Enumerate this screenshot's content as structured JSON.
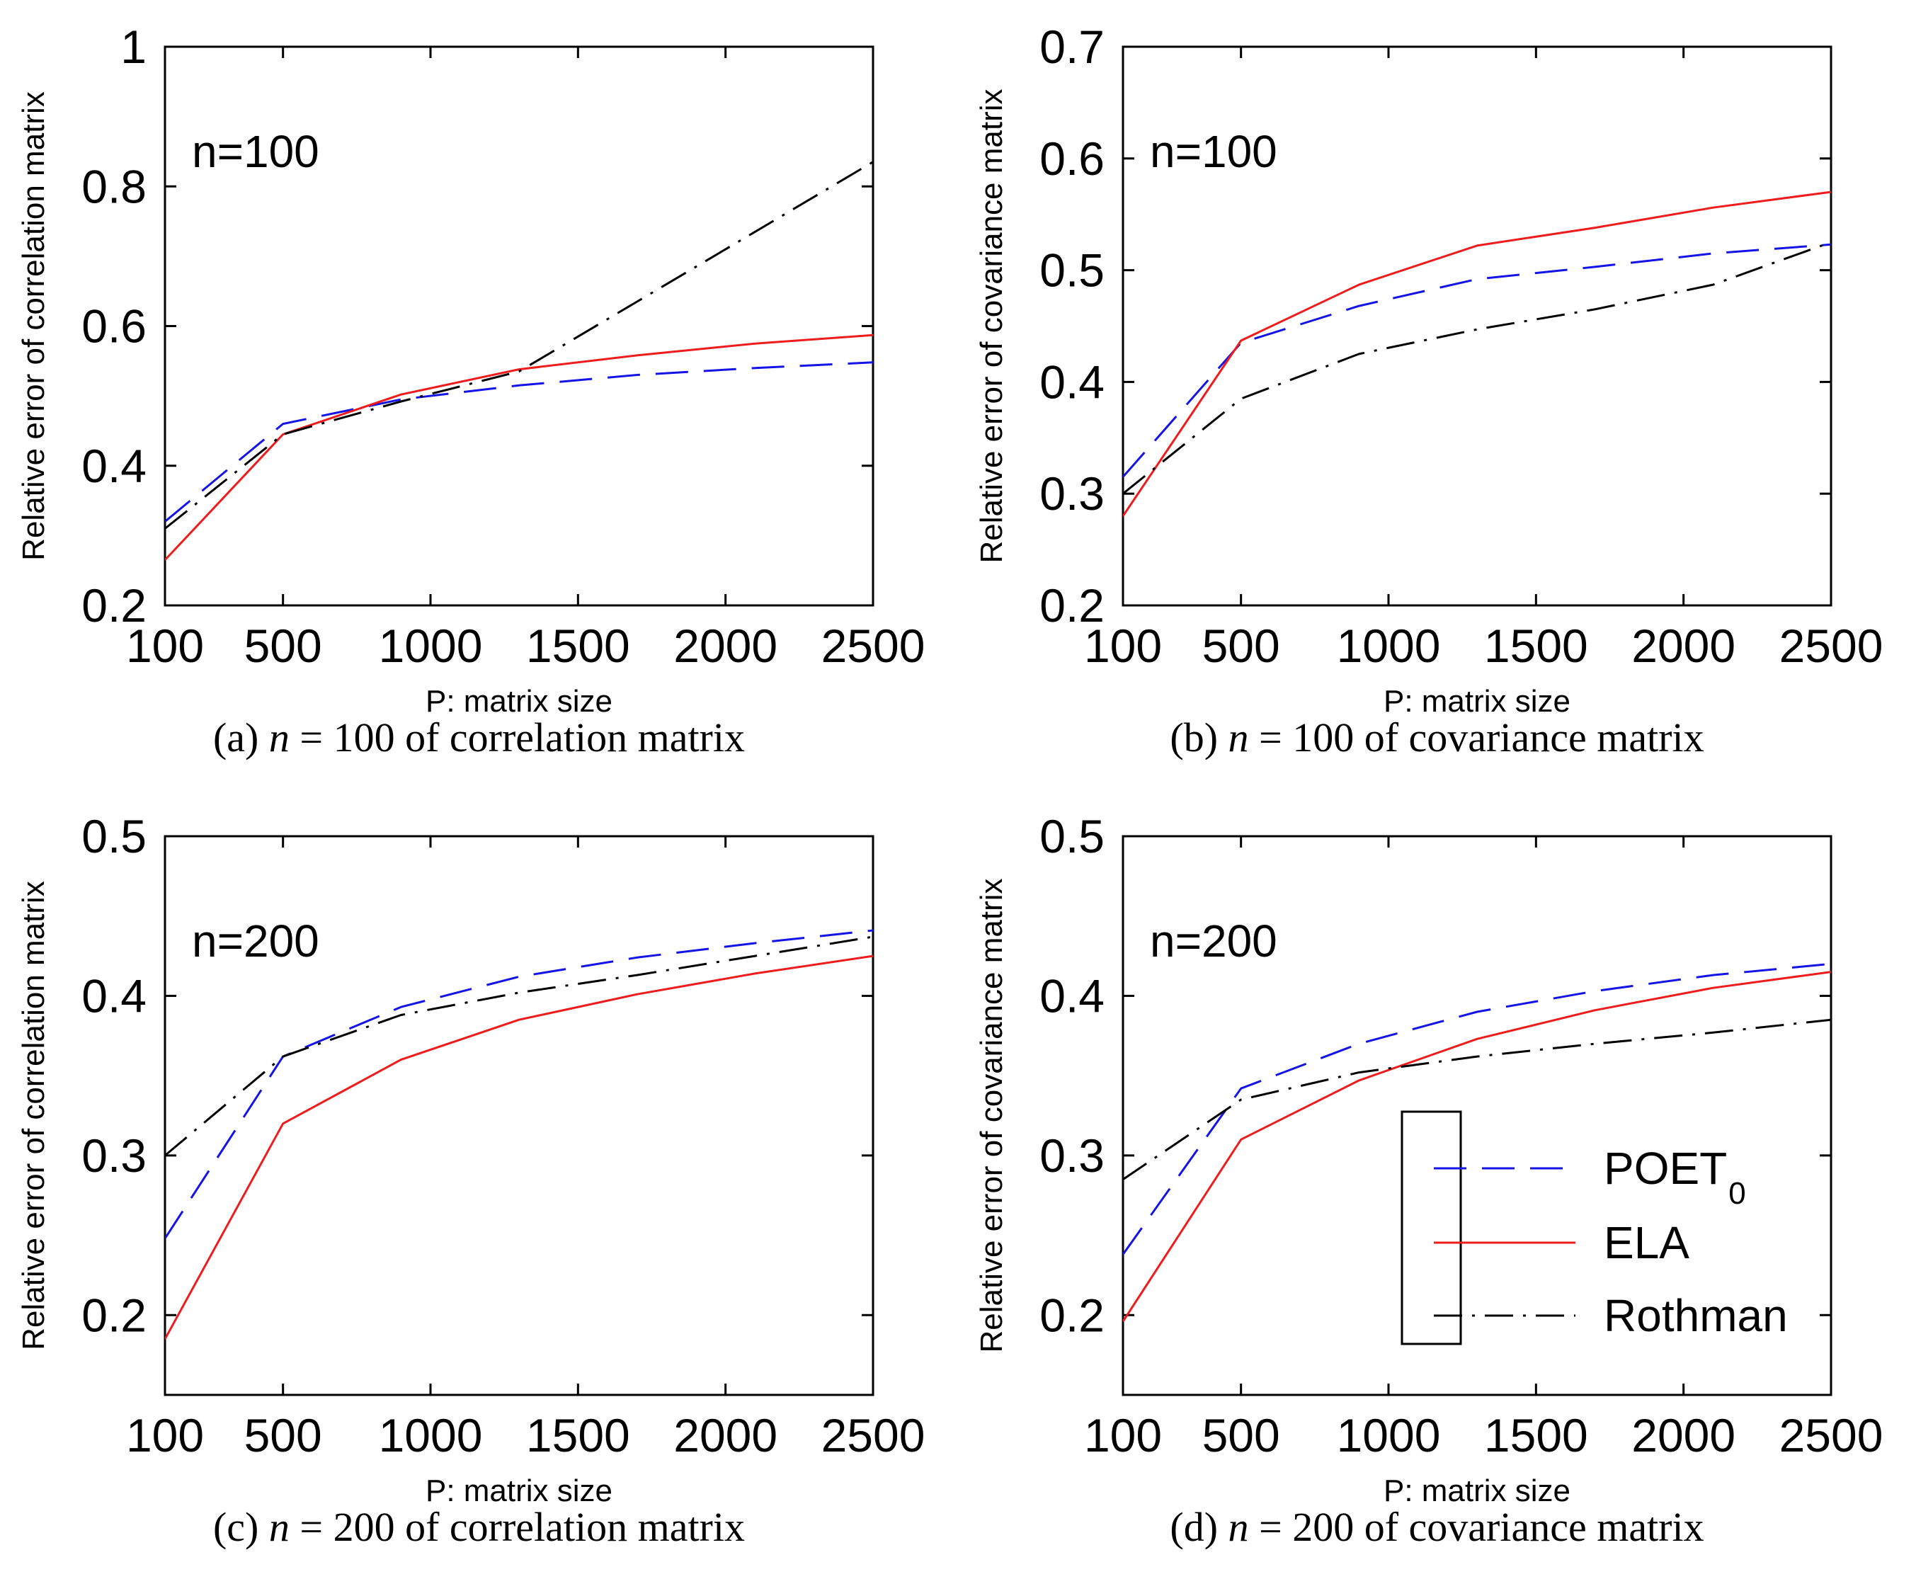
{
  "chart_data": [
    {
      "type": "line",
      "panel": "a",
      "annotation": "n=100",
      "xlabel": "P: matrix size",
      "ylabel": "Relative error of correlation matrix",
      "xticks": [
        100,
        500,
        1000,
        1500,
        2000,
        2500
      ],
      "yticks": [
        0.2,
        0.4,
        0.6,
        0.8,
        1
      ],
      "ytick_labels": [
        "0.2",
        "0.4",
        "0.6",
        "0.8",
        "1"
      ],
      "xlim": [
        100,
        2500
      ],
      "ylim": [
        0.2,
        1.0
      ],
      "caption_prefix": "(a)",
      "caption_var": "n",
      "caption_rest": " = 100 of correlation matrix",
      "series": [
        {
          "name": "POET0",
          "x": [
            100,
            500,
            900,
            1300,
            1700,
            2100,
            2500
          ],
          "y": [
            0.32,
            0.46,
            0.495,
            0.515,
            0.53,
            0.54,
            0.548
          ]
        },
        {
          "name": "ELA",
          "x": [
            100,
            500,
            900,
            1300,
            1700,
            2100,
            2500
          ],
          "y": [
            0.265,
            0.445,
            0.502,
            0.538,
            0.558,
            0.575,
            0.587
          ]
        },
        {
          "name": "Rothman",
          "x": [
            100,
            500,
            900,
            1300,
            1700,
            2100,
            2500
          ],
          "y": [
            0.31,
            0.445,
            0.492,
            0.535,
            0.635,
            0.735,
            0.835
          ]
        }
      ]
    },
    {
      "type": "line",
      "panel": "b",
      "annotation": "n=100",
      "xlabel": "P: matrix size",
      "ylabel": "Relative error of covariance matrix",
      "xticks": [
        100,
        500,
        1000,
        1500,
        2000,
        2500
      ],
      "yticks": [
        0.2,
        0.3,
        0.4,
        0.5,
        0.6,
        0.7
      ],
      "ytick_labels": [
        "0.2",
        "0.3",
        "0.4",
        "0.5",
        "0.6",
        "0.7"
      ],
      "xlim": [
        100,
        2500
      ],
      "ylim": [
        0.2,
        0.7
      ],
      "caption_prefix": "(b)",
      "caption_var": "n",
      "caption_rest": " = 100 of covariance matrix",
      "series": [
        {
          "name": "POET0",
          "x": [
            100,
            500,
            900,
            1300,
            1700,
            2100,
            2500
          ],
          "y": [
            0.315,
            0.435,
            0.468,
            0.492,
            0.503,
            0.515,
            0.523
          ]
        },
        {
          "name": "ELA",
          "x": [
            100,
            500,
            900,
            1300,
            1700,
            2100,
            2500
          ],
          "y": [
            0.28,
            0.437,
            0.487,
            0.522,
            0.538,
            0.556,
            0.57
          ]
        },
        {
          "name": "Rothman",
          "x": [
            100,
            500,
            900,
            1300,
            1700,
            2100,
            2500
          ],
          "y": [
            0.3,
            0.385,
            0.425,
            0.447,
            0.465,
            0.487,
            0.525
          ]
        }
      ]
    },
    {
      "type": "line",
      "panel": "c",
      "annotation": "n=200",
      "xlabel": "P: matrix size",
      "ylabel": "Relative error of correlation matrix",
      "xticks": [
        100,
        500,
        1000,
        1500,
        2000,
        2500
      ],
      "yticks": [
        0.2,
        0.3,
        0.4,
        0.5
      ],
      "ytick_labels": [
        "0.2",
        "0.3",
        "0.4",
        "0.5"
      ],
      "xlim": [
        100,
        2500
      ],
      "ylim": [
        0.15,
        0.5
      ],
      "caption_prefix": "(c)",
      "caption_var": "n",
      "caption_rest": " = 200 of correlation matrix",
      "series": [
        {
          "name": "POET0",
          "x": [
            100,
            500,
            900,
            1300,
            1700,
            2100,
            2500
          ],
          "y": [
            0.248,
            0.362,
            0.393,
            0.412,
            0.424,
            0.433,
            0.441
          ]
        },
        {
          "name": "ELA",
          "x": [
            100,
            500,
            900,
            1300,
            1700,
            2100,
            2500
          ],
          "y": [
            0.185,
            0.32,
            0.36,
            0.385,
            0.401,
            0.414,
            0.425
          ]
        },
        {
          "name": "Rothman",
          "x": [
            100,
            500,
            900,
            1300,
            1700,
            2100,
            2500
          ],
          "y": [
            0.3,
            0.362,
            0.388,
            0.402,
            0.413,
            0.425,
            0.437
          ]
        }
      ]
    },
    {
      "type": "line",
      "panel": "d",
      "annotation": "n=200",
      "xlabel": "P: matrix size",
      "ylabel": "Relative error of covariance matrix",
      "xticks": [
        100,
        500,
        1000,
        1500,
        2000,
        2500
      ],
      "yticks": [
        0.2,
        0.3,
        0.4,
        0.5
      ],
      "ytick_labels": [
        "0.2",
        "0.3",
        "0.4",
        "0.5"
      ],
      "xlim": [
        100,
        2500
      ],
      "ylim": [
        0.15,
        0.5
      ],
      "caption_prefix": "(d)",
      "caption_var": "n",
      "caption_rest": " = 200 of covariance matrix",
      "legend": {
        "location": "bottom-right",
        "entries": [
          {
            "name": "POET",
            "sub": "0"
          },
          {
            "name": "ELA",
            "sub": ""
          },
          {
            "name": "Rothman",
            "sub": ""
          }
        ]
      },
      "series": [
        {
          "name": "POET0",
          "x": [
            100,
            500,
            900,
            1300,
            1700,
            2100,
            2500
          ],
          "y": [
            0.238,
            0.342,
            0.37,
            0.39,
            0.403,
            0.413,
            0.42
          ]
        },
        {
          "name": "ELA",
          "x": [
            100,
            500,
            900,
            1300,
            1700,
            2100,
            2500
          ],
          "y": [
            0.196,
            0.31,
            0.347,
            0.373,
            0.391,
            0.405,
            0.415
          ]
        },
        {
          "name": "Rothman",
          "x": [
            100,
            500,
            900,
            1300,
            1700,
            2100,
            2500
          ],
          "y": [
            0.285,
            0.335,
            0.352,
            0.362,
            0.37,
            0.377,
            0.385
          ]
        }
      ]
    }
  ],
  "style": {
    "series_colors": {
      "POET0": "#1414e6",
      "ELA": "#ee1c1c",
      "Rothman": "#000000"
    },
    "series_dash": {
      "POET0": "dashed",
      "ELA": "solid",
      "Rothman": "dashdot"
    }
  }
}
